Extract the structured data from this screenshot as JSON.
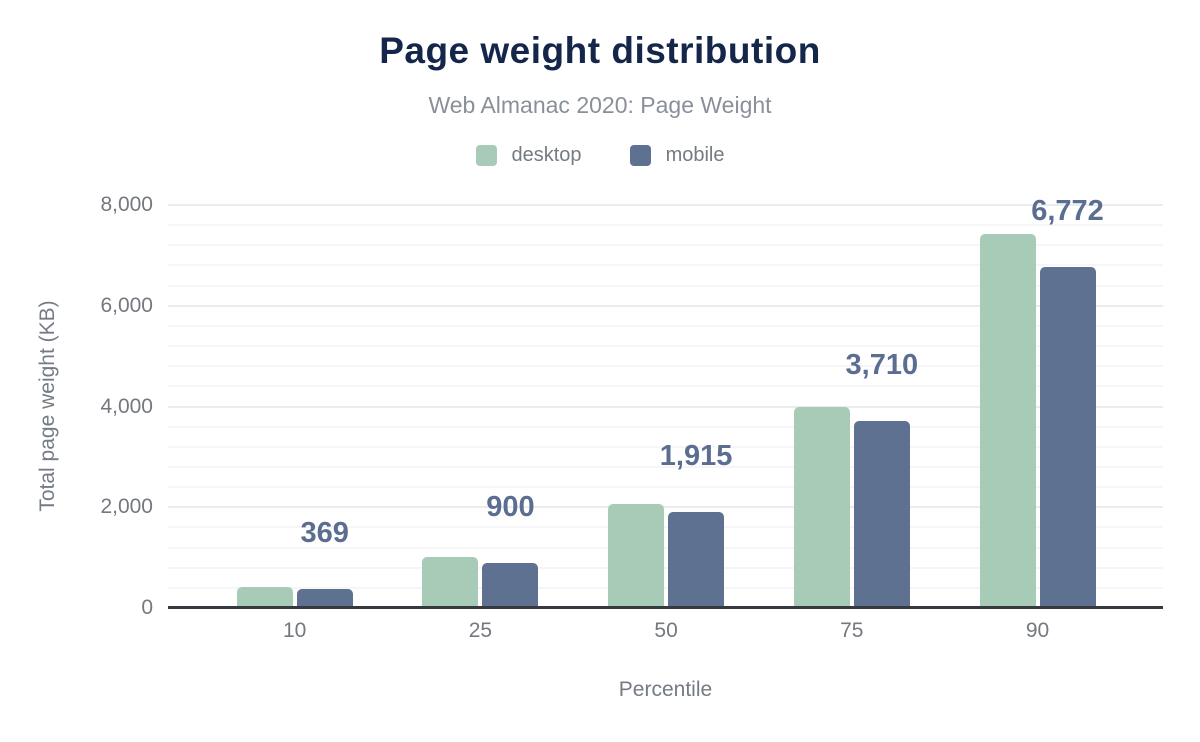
{
  "chart_data": {
    "type": "bar",
    "title": "Page weight distribution",
    "subtitle": "Web Almanac 2020: Page Weight",
    "categories": [
      "10",
      "25",
      "50",
      "75",
      "90"
    ],
    "series": [
      {
        "name": "desktop",
        "color": "#a8cbb8",
        "values": [
          420,
          1020,
          2060,
          3990,
          7420
        ],
        "values_estimated_from_pixels": true
      },
      {
        "name": "mobile",
        "color": "#5f7190",
        "values": [
          369,
          900,
          1915,
          3710,
          6772
        ],
        "data_labels": [
          "369",
          "900",
          "1,915",
          "3,710",
          "6,772"
        ]
      }
    ],
    "xlabel": "Percentile",
    "ylabel": "Total page weight (KB)",
    "ylim": [
      0,
      8000
    ],
    "yticks": [
      {
        "value": 0,
        "label": "0"
      },
      {
        "value": 2000,
        "label": "2,000"
      },
      {
        "value": 4000,
        "label": "4,000"
      },
      {
        "value": 6000,
        "label": "6,000"
      },
      {
        "value": 8000,
        "label": "8,000"
      }
    ],
    "grid": {
      "visible": true,
      "minor_step": 400,
      "major_step": 2000
    },
    "legend_position": "top",
    "colors": {
      "title": "#142649",
      "subtitle": "#8a9099",
      "axis_text": "#74787f",
      "axis_line": "#36393f",
      "data_label": "#5b6d90",
      "background": "#ffffff"
    }
  }
}
